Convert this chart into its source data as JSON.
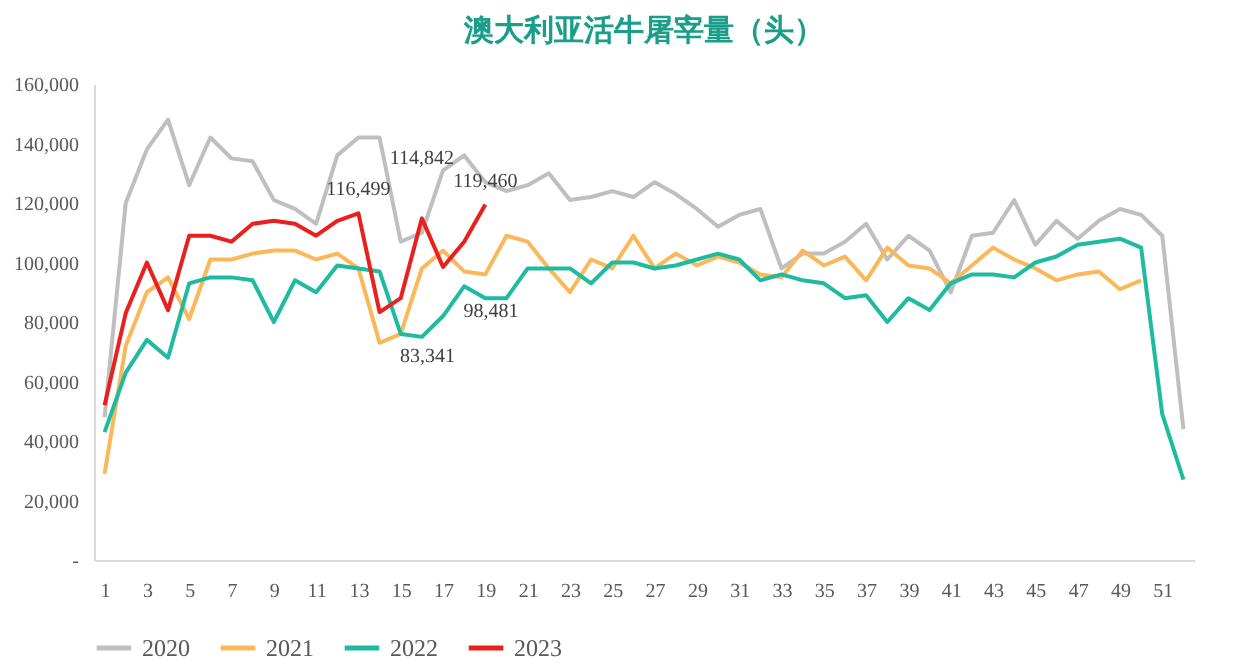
{
  "chart_data": {
    "type": "line",
    "title": "澳大利亚活牛屠宰量（头）",
    "x": [
      1,
      2,
      3,
      4,
      5,
      6,
      7,
      8,
      9,
      10,
      11,
      12,
      13,
      14,
      15,
      16,
      17,
      18,
      19,
      20,
      21,
      22,
      23,
      24,
      25,
      26,
      27,
      28,
      29,
      30,
      31,
      32,
      33,
      34,
      35,
      36,
      37,
      38,
      39,
      40,
      41,
      42,
      43,
      44,
      45,
      46,
      47,
      48,
      49,
      50,
      51,
      52
    ],
    "xlim": [
      0.5,
      52.5
    ],
    "xticks": [
      1,
      3,
      5,
      7,
      9,
      11,
      13,
      15,
      17,
      19,
      21,
      23,
      25,
      27,
      29,
      31,
      33,
      35,
      37,
      39,
      41,
      43,
      45,
      47,
      49,
      51
    ],
    "ylim": [
      0,
      160000
    ],
    "yticks": [
      {
        "value": 0,
        "label": "-"
      },
      {
        "value": 20000,
        "label": "20,000"
      },
      {
        "value": 40000,
        "label": "40,000"
      },
      {
        "value": 60000,
        "label": "60,000"
      },
      {
        "value": 80000,
        "label": "80,000"
      },
      {
        "value": 100000,
        "label": "100,000"
      },
      {
        "value": 120000,
        "label": "120,000"
      },
      {
        "value": 140000,
        "label": "140,000"
      },
      {
        "value": 160000,
        "label": "160,000"
      }
    ],
    "series": [
      {
        "name": "2020",
        "color": "#bfbfbf",
        "values": [
          48000,
          120000,
          138000,
          148000,
          126000,
          142000,
          135000,
          134000,
          121000,
          118000,
          113000,
          136000,
          142000,
          142000,
          107000,
          110000,
          131000,
          136000,
          127000,
          124000,
          126000,
          130000,
          121000,
          122000,
          124000,
          122000,
          127000,
          123000,
          118000,
          112000,
          116000,
          118000,
          98000,
          103000,
          103000,
          107000,
          113000,
          101000,
          109000,
          104000,
          90000,
          109000,
          110000,
          121000,
          106000,
          114000,
          108000,
          114000,
          118000,
          116000,
          109000,
          44000
        ]
      },
      {
        "name": "2021",
        "color": "#fbb85a",
        "values": [
          29000,
          72000,
          90000,
          95000,
          81000,
          101000,
          101000,
          103000,
          104000,
          104000,
          101000,
          103000,
          98000,
          73000,
          76000,
          98000,
          104000,
          97000,
          96000,
          109000,
          107000,
          98000,
          90000,
          101000,
          98000,
          109000,
          98000,
          103000,
          99000,
          102000,
          100000,
          96000,
          95000,
          104000,
          99000,
          102000,
          94000,
          105000,
          99000,
          98000,
          93000,
          99000,
          105000,
          101000,
          98000,
          94000,
          96000,
          97000,
          91000,
          94000,
          null,
          null
        ]
      },
      {
        "name": "2022",
        "color": "#1fbba0",
        "values": [
          43000,
          63000,
          74000,
          68000,
          93000,
          95000,
          95000,
          94000,
          80000,
          94000,
          90000,
          99000,
          98000,
          97000,
          76000,
          75000,
          82000,
          92000,
          88000,
          88000,
          98000,
          98000,
          98000,
          93000,
          100000,
          100000,
          98000,
          99000,
          101000,
          103000,
          101000,
          94000,
          96000,
          94000,
          93000,
          88000,
          89000,
          80000,
          88000,
          84000,
          93000,
          96000,
          96000,
          95000,
          100000,
          102000,
          106000,
          107000,
          108000,
          105000,
          49000,
          27000
        ]
      },
      {
        "name": "2023",
        "color": "#e8201e",
        "values": [
          52000,
          83000,
          100000,
          84000,
          109000,
          109000,
          107000,
          113000,
          114000,
          113000,
          109000,
          114000,
          116499,
          83341,
          88000,
          114842,
          98481,
          107000,
          119460,
          null,
          null,
          null,
          null,
          null,
          null,
          null,
          null,
          null,
          null,
          null,
          null,
          null,
          null,
          null,
          null,
          null,
          null,
          null,
          null,
          null,
          null,
          null,
          null,
          null,
          null,
          null,
          null,
          null,
          null,
          null,
          null,
          null
        ]
      }
    ],
    "annotations": [
      {
        "text": "116,499",
        "x": 13,
        "y": 116499
      },
      {
        "text": "83,341",
        "x": 14,
        "y": 83341
      },
      {
        "text": "114,842",
        "x": 16,
        "y": 114842
      },
      {
        "text": "98,481",
        "x": 17,
        "y": 98481
      },
      {
        "text": "119,460",
        "x": 19,
        "y": 119460
      }
    ],
    "legend": "bottom",
    "marker": "none",
    "line_style": "solid"
  }
}
